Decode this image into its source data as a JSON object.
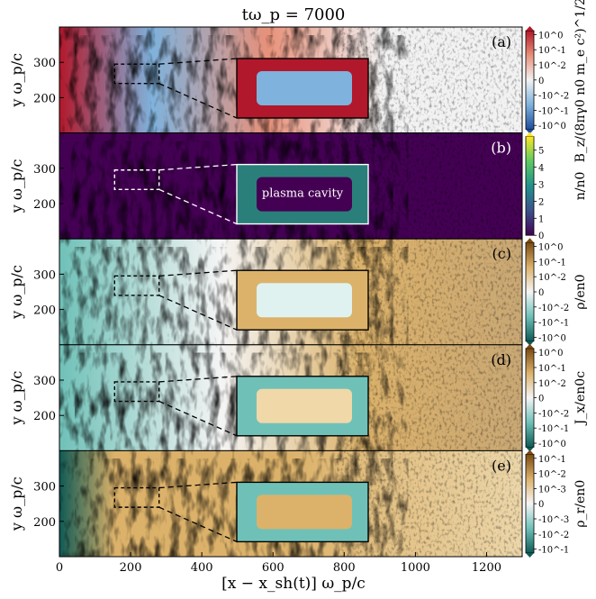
{
  "figure": {
    "title": "tω_p = 7000",
    "xlabel": "[x − x_sh(t)] ω_p/c",
    "x_ticks": [
      "0",
      "200",
      "400",
      "600",
      "800",
      "1000",
      "1200"
    ]
  },
  "chart_data": [
    {
      "type": "heatmap",
      "panel": "(a)",
      "quantity": "B_z",
      "colorbar_label": "B_z/(8πγ0 n0 m_e c²)^1/2",
      "colormap": [
        "#1f4e9c",
        "#7fb2dc",
        "#f2f2f2",
        "#e8917a",
        "#b2182b"
      ],
      "colorbar_ticks": [
        "10^0",
        "10^-1",
        "10^-2",
        "0",
        "-10^-2",
        "-10^-1",
        "-10^0"
      ],
      "colorbar_scale": "symlog",
      "ylabel": "y ω_p/c",
      "y_ticks": [
        "300",
        "200"
      ],
      "xlim": [
        0,
        1300
      ],
      "ylim": [
        100,
        400
      ],
      "zoom_box": {
        "x": [
          155,
          280
        ],
        "y": [
          240,
          295
        ]
      },
      "annotation": ""
    },
    {
      "type": "heatmap",
      "panel": "(b)",
      "quantity": "n",
      "colorbar_label": "n/n0",
      "colormap": [
        "#440154",
        "#3b528b",
        "#21918c",
        "#5ec962",
        "#fde725"
      ],
      "colorbar_ticks": [
        "5",
        "4",
        "3",
        "2",
        "1",
        "0"
      ],
      "colorbar_scale": "linear",
      "clim": [
        0,
        5.8
      ],
      "ylabel": "y ω_p/c",
      "y_ticks": [
        "300",
        "200"
      ],
      "xlim": [
        0,
        1300
      ],
      "ylim": [
        100,
        400
      ],
      "zoom_box": {
        "x": [
          155,
          280
        ],
        "y": [
          240,
          295
        ]
      },
      "annotation": "plasma cavity"
    },
    {
      "type": "heatmap",
      "panel": "(c)",
      "quantity": "ρ",
      "colorbar_label": "ρ/en0",
      "colormap": [
        "#0f5a55",
        "#6fc1b8",
        "#f5f5f5",
        "#dcb26a",
        "#7a4a12"
      ],
      "colorbar_ticks": [
        "10^0",
        "10^-1",
        "10^-2",
        "0",
        "-10^-2",
        "-10^-1",
        "-10^0"
      ],
      "colorbar_scale": "symlog",
      "ylabel": "y ω_p/c",
      "y_ticks": [
        "300",
        "200"
      ],
      "xlim": [
        0,
        1300
      ],
      "ylim": [
        100,
        400
      ],
      "zoom_box": {
        "x": [
          155,
          280
        ],
        "y": [
          240,
          295
        ]
      },
      "annotation": ""
    },
    {
      "type": "heatmap",
      "panel": "(d)",
      "quantity": "J_x",
      "colorbar_label": "J_x/en0c",
      "colormap": [
        "#0f5a55",
        "#6fc1b8",
        "#f5f5f5",
        "#dcb26a",
        "#7a4a12"
      ],
      "colorbar_ticks": [
        "10^0",
        "10^-1",
        "10^-2",
        "0",
        "-10^-2",
        "-10^-1",
        "-10^0"
      ],
      "colorbar_scale": "symlog",
      "ylabel": "y ω_p/c",
      "y_ticks": [
        "300",
        "200"
      ],
      "xlim": [
        0,
        1300
      ],
      "ylim": [
        100,
        400
      ],
      "zoom_box": {
        "x": [
          155,
          280
        ],
        "y": [
          240,
          295
        ]
      },
      "annotation": ""
    },
    {
      "type": "heatmap",
      "panel": "(e)",
      "quantity": "ρ_r",
      "colorbar_label": "ρ_r/en0",
      "colormap": [
        "#0f5a55",
        "#6fc1b8",
        "#f5f5f5",
        "#dcb26a",
        "#7a4a12"
      ],
      "colorbar_ticks": [
        "10^-1",
        "10^-2",
        "10^-3",
        "0",
        "-10^-3",
        "-10^-2",
        "-10^-1"
      ],
      "colorbar_scale": "symlog",
      "ylabel": "y ω_p/c",
      "y_ticks": [
        "300",
        "200"
      ],
      "xlim": [
        0,
        1300
      ],
      "ylim": [
        100,
        400
      ],
      "zoom_box": {
        "x": [
          155,
          280
        ],
        "y": [
          240,
          295
        ]
      },
      "annotation": ""
    }
  ]
}
